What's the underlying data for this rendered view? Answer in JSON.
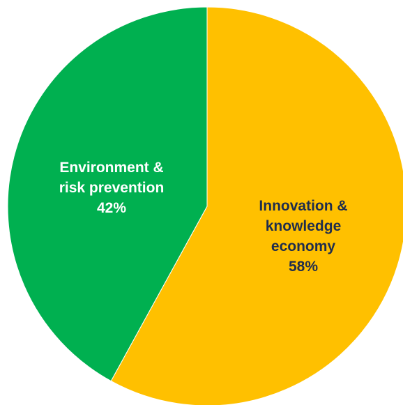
{
  "chart_data": {
    "type": "pie",
    "start_angle_deg": 0,
    "direction": "clockwise",
    "slices": [
      {
        "label_lines": [
          "Innovation &",
          "knowledge",
          "economy"
        ],
        "value_label": "58%",
        "value": 58,
        "color": "#FFC000",
        "label_color": "#1F2D4D"
      },
      {
        "label_lines": [
          "Environment &",
          "risk prevention"
        ],
        "value_label": "42%",
        "value": 42,
        "color": "#00B050",
        "label_color": "#FFFFFF"
      }
    ]
  }
}
